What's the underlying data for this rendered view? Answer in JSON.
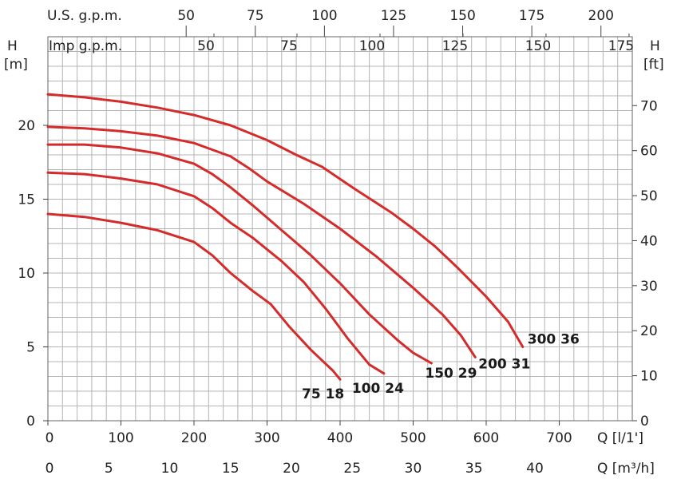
{
  "chart_data": {
    "type": "line",
    "title": "",
    "x": [
      0,
      100,
      200,
      300,
      400,
      500,
      600,
      700
    ],
    "xlim": [
      0,
      800
    ],
    "ylim": [
      0,
      26
    ],
    "grid": true,
    "axes": {
      "q_lmin_label": "Q [l/1']",
      "q_m3h_label": "Q [m³/h]",
      "h_m_top": "H",
      "h_m_unit": "[m]",
      "h_ft_top": "H",
      "h_ft_unit": "[ft]",
      "usgpm_label": "U.S. g.p.m.",
      "impgpm_label": "Imp g.p.m.",
      "q_lmin_ticks": [
        "0",
        "100",
        "200",
        "300",
        "400",
        "500",
        "600",
        "700"
      ],
      "q_m3h_ticks": [
        "0",
        "5",
        "10",
        "15",
        "20",
        "25",
        "30",
        "35",
        "40"
      ],
      "usgpm_ticks": [
        "50",
        "75",
        "100",
        "125",
        "150",
        "175",
        "200"
      ],
      "impgpm_ticks": [
        "50",
        "75",
        "100",
        "125",
        "150",
        "175"
      ],
      "h_m_ticks": [
        "0",
        "5",
        "10",
        "15",
        "20"
      ],
      "h_ft_ticks": [
        "0",
        "10",
        "20",
        "30",
        "40",
        "50",
        "60",
        "70"
      ]
    },
    "series": [
      {
        "name": "75 18",
        "color": "#d42b2b",
        "points": [
          [
            0,
            14.0
          ],
          [
            50,
            13.8
          ],
          [
            100,
            13.4
          ],
          [
            150,
            12.9
          ],
          [
            200,
            12.1
          ],
          [
            225,
            11.2
          ],
          [
            250,
            10.0
          ],
          [
            280,
            8.8
          ],
          [
            305,
            7.9
          ],
          [
            330,
            6.4
          ],
          [
            360,
            4.8
          ],
          [
            390,
            3.4
          ],
          [
            400,
            2.8
          ]
        ]
      },
      {
        "name": "100 24",
        "color": "#d42b2b",
        "points": [
          [
            0,
            16.8
          ],
          [
            50,
            16.7
          ],
          [
            100,
            16.4
          ],
          [
            150,
            16.0
          ],
          [
            200,
            15.2
          ],
          [
            225,
            14.4
          ],
          [
            250,
            13.4
          ],
          [
            280,
            12.4
          ],
          [
            320,
            10.8
          ],
          [
            350,
            9.4
          ],
          [
            380,
            7.6
          ],
          [
            410,
            5.6
          ],
          [
            440,
            3.8
          ],
          [
            460,
            3.2
          ]
        ]
      },
      {
        "name": "150 29",
        "color": "#d42b2b",
        "points": [
          [
            0,
            18.7
          ],
          [
            50,
            18.7
          ],
          [
            100,
            18.5
          ],
          [
            150,
            18.1
          ],
          [
            200,
            17.4
          ],
          [
            225,
            16.7
          ],
          [
            250,
            15.8
          ],
          [
            280,
            14.6
          ],
          [
            320,
            12.9
          ],
          [
            360,
            11.2
          ],
          [
            400,
            9.3
          ],
          [
            440,
            7.2
          ],
          [
            480,
            5.4
          ],
          [
            500,
            4.6
          ],
          [
            525,
            3.9
          ]
        ]
      },
      {
        "name": "200 31",
        "color": "#d42b2b",
        "points": [
          [
            0,
            19.9
          ],
          [
            50,
            19.8
          ],
          [
            100,
            19.6
          ],
          [
            150,
            19.3
          ],
          [
            200,
            18.8
          ],
          [
            250,
            17.9
          ],
          [
            275,
            17.1
          ],
          [
            300,
            16.2
          ],
          [
            350,
            14.7
          ],
          [
            400,
            13.0
          ],
          [
            450,
            11.1
          ],
          [
            500,
            9.0
          ],
          [
            540,
            7.2
          ],
          [
            565,
            5.8
          ],
          [
            585,
            4.3
          ]
        ]
      },
      {
        "name": "300 36",
        "color": "#d42b2b",
        "points": [
          [
            0,
            22.1
          ],
          [
            50,
            21.9
          ],
          [
            100,
            21.6
          ],
          [
            150,
            21.2
          ],
          [
            200,
            20.7
          ],
          [
            250,
            20.0
          ],
          [
            300,
            19.0
          ],
          [
            340,
            18.0
          ],
          [
            375,
            17.2
          ],
          [
            420,
            15.7
          ],
          [
            470,
            14.1
          ],
          [
            500,
            13.0
          ],
          [
            530,
            11.8
          ],
          [
            560,
            10.4
          ],
          [
            600,
            8.4
          ],
          [
            630,
            6.7
          ],
          [
            650,
            5.0
          ]
        ]
      }
    ]
  }
}
